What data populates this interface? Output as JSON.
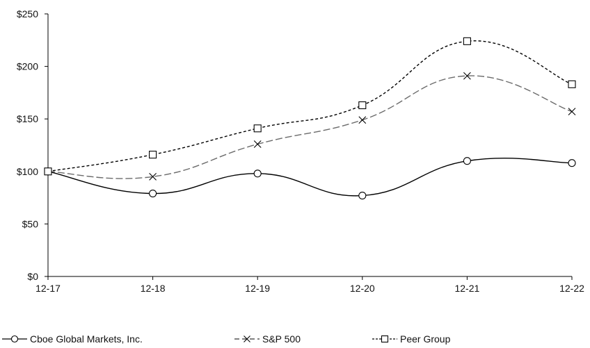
{
  "chart_data": {
    "type": "line",
    "title": "",
    "xlabel": "",
    "ylabel": "",
    "categories": [
      "12-17",
      "12-18",
      "12-19",
      "12-20",
      "12-21",
      "12-22"
    ],
    "ylim": [
      0,
      250
    ],
    "yticks": [
      0,
      50,
      100,
      150,
      200,
      250
    ],
    "ytick_labels": [
      "$0",
      "$50",
      "$100",
      "$150",
      "$200",
      "$250"
    ],
    "grid": false,
    "legend_position": "bottom",
    "series": [
      {
        "name": "Cboe Global Markets, Inc.",
        "values": [
          100,
          79,
          98,
          77,
          110,
          108
        ],
        "marker": "circle",
        "line_style": "solid",
        "color": "#000000"
      },
      {
        "name": "S&P 500",
        "values": [
          100,
          95,
          126,
          149,
          191,
          157
        ],
        "marker": "x",
        "line_style": "dashed",
        "color": "#6b6b6b"
      },
      {
        "name": "Peer Group",
        "values": [
          100,
          116,
          141,
          163,
          224,
          183
        ],
        "marker": "square",
        "line_style": "dotted",
        "color": "#000000"
      }
    ]
  }
}
